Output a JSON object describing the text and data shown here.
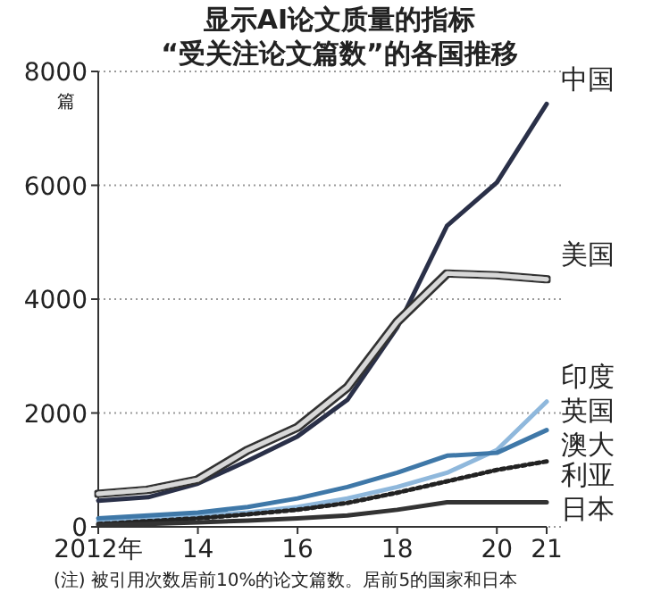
{
  "chart_data": {
    "type": "line",
    "title": "显示AI论文质量的指标\n“受关注论文篇数”的各国推移",
    "ylabel": "篇",
    "x": [
      2012,
      2013,
      2014,
      2015,
      2016,
      2017,
      2018,
      2019,
      2020,
      2021
    ],
    "xlim": [
      2012,
      2021
    ],
    "xticks": [
      {
        "value": 2012,
        "label": "2012年"
      },
      {
        "value": 2014,
        "label": "14"
      },
      {
        "value": 2016,
        "label": "16"
      },
      {
        "value": 2018,
        "label": "18"
      },
      {
        "value": 2020,
        "label": "20"
      },
      {
        "value": 2021,
        "label": "21"
      }
    ],
    "ylim": [
      0,
      8000
    ],
    "yticks": [
      0,
      2000,
      4000,
      6000,
      8000
    ],
    "grid": "y",
    "series": [
      {
        "name": "中国",
        "color": "#2a3048",
        "values": [
          460,
          520,
          760,
          1160,
          1590,
          2230,
          3500,
          5290,
          6050,
          7430
        ]
      },
      {
        "name": "美国",
        "color": "#d8d8d8",
        "values": [
          580,
          650,
          830,
          1350,
          1750,
          2450,
          3600,
          4450,
          4420,
          4350
        ]
      },
      {
        "name": "印度",
        "color": "#8fb8dc",
        "values": [
          100,
          150,
          200,
          250,
          350,
          500,
          700,
          950,
          1350,
          2200
        ]
      },
      {
        "name": "英国",
        "color": "#3f78a8",
        "values": [
          150,
          200,
          250,
          350,
          500,
          700,
          950,
          1250,
          1300,
          1700
        ]
      },
      {
        "name": "澳大利亚",
        "color": "#222222",
        "line_style": "dotted",
        "values": [
          50,
          100,
          150,
          220,
          300,
          420,
          600,
          800,
          1000,
          1150
        ]
      },
      {
        "name": "日本",
        "color": "#333333",
        "values": [
          30,
          50,
          80,
          110,
          150,
          200,
          300,
          430,
          430,
          430
        ]
      }
    ],
    "annotations": [
      "(注) 被引用次数居前10%的论文篇数。居前5的国家和日本"
    ]
  }
}
